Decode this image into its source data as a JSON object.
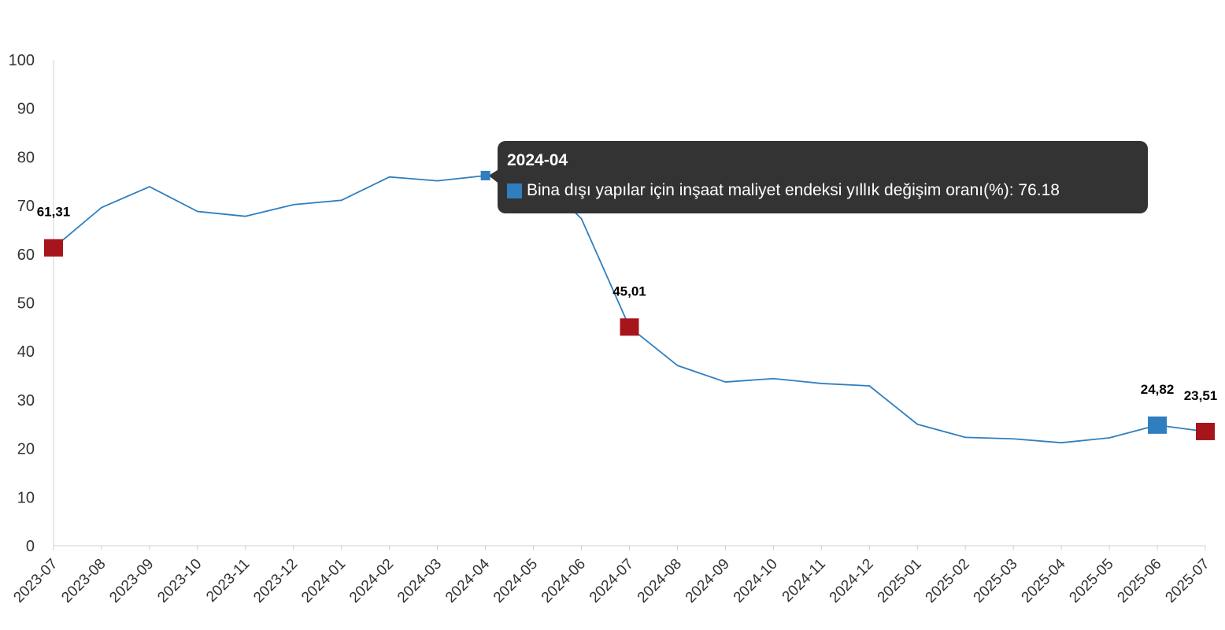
{
  "chart_data": {
    "type": "line",
    "title": "",
    "xlabel": "",
    "ylabel": "",
    "ylim": [
      0,
      100
    ],
    "yticks": [
      0,
      10,
      20,
      30,
      40,
      50,
      60,
      70,
      80,
      90,
      100
    ],
    "grid": false,
    "categories": [
      "2023-07",
      "2023-08",
      "2023-09",
      "2023-10",
      "2023-11",
      "2023-12",
      "2024-01",
      "2024-02",
      "2024-03",
      "2024-04",
      "2024-05",
      "2024-06",
      "2024-07",
      "2024-08",
      "2024-09",
      "2024-10",
      "2024-11",
      "2024-12",
      "2025-01",
      "2025-02",
      "2025-03",
      "2025-04",
      "2025-05",
      "2025-06",
      "2025-07"
    ],
    "series": [
      {
        "name": "Bina dışı yapılar için inşaat maliyet endeksi yıllık değişim oranı(%)",
        "color": "#2f7ebf",
        "values": [
          61.31,
          69.6,
          73.9,
          68.8,
          67.8,
          70.2,
          71.1,
          75.9,
          75.1,
          76.18,
          77.0,
          67.3,
          45.01,
          37.1,
          33.7,
          34.4,
          33.4,
          32.9,
          25.0,
          22.3,
          22.0,
          21.2,
          22.2,
          24.82,
          23.51
        ]
      }
    ],
    "highlighted_points": [
      {
        "index": 0,
        "label": "61,31",
        "color": "#a6141c"
      },
      {
        "index": 12,
        "label": "45,01",
        "color": "#a6141c"
      },
      {
        "index": 23,
        "label": "24,82",
        "color": "#2f7ebf"
      },
      {
        "index": 24,
        "label": "23,51",
        "color": "#a6141c"
      }
    ],
    "tooltip": {
      "index": 9,
      "title": "2024-04",
      "text": "Bina dışı yapılar için inşaat maliyet endeksi yıllık değişim oranı(%): 76.18",
      "background": "#333333",
      "swatch_color": "#2f7ebf"
    }
  }
}
